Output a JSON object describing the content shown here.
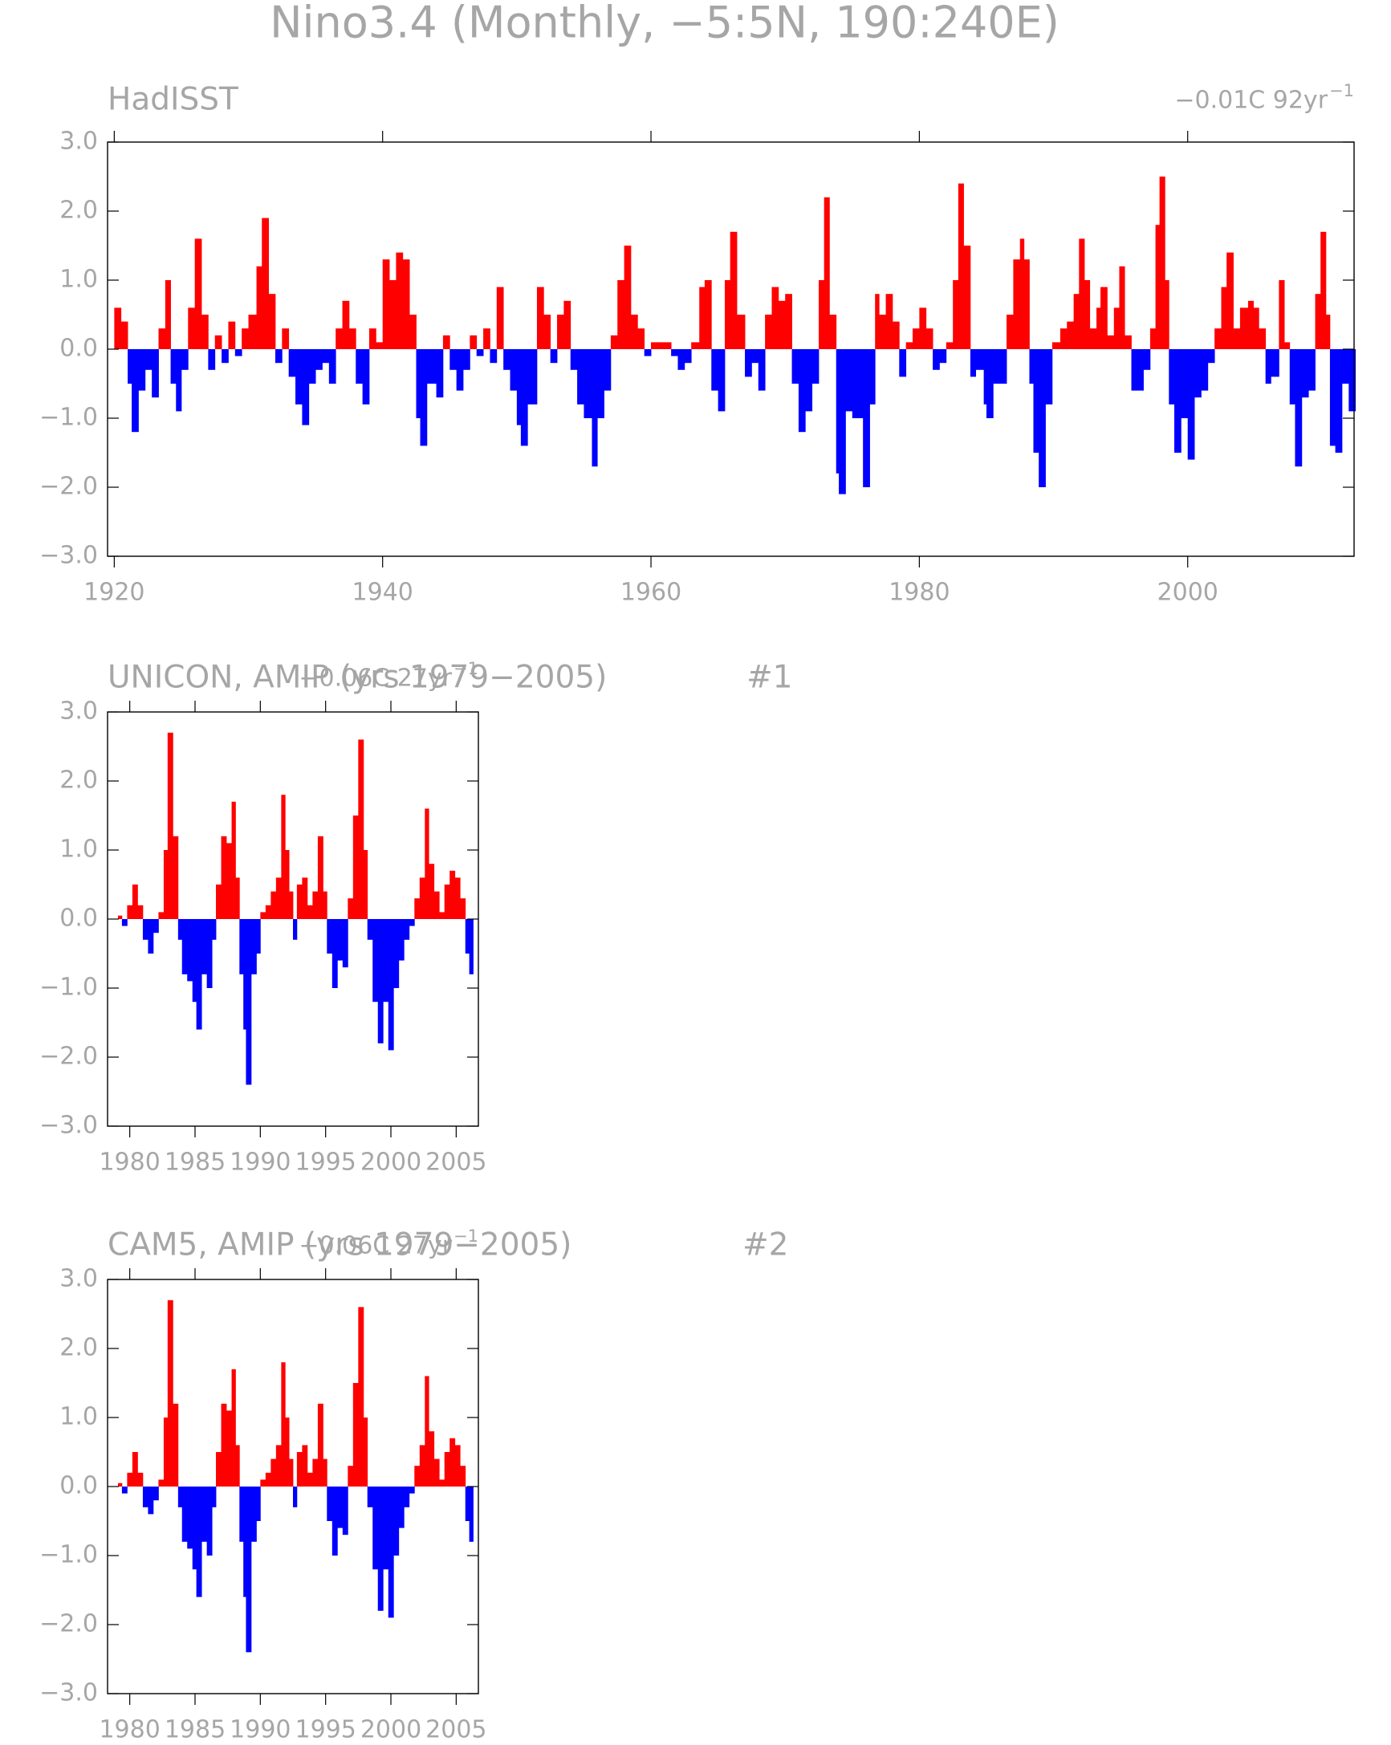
{
  "title": "Nino3.4 (Monthly, −5:5N, 190:240E)",
  "chart_data": [
    {
      "type": "area",
      "title": "HadISST",
      "trend_label": "−0.01C 92yr",
      "trend_exponent": "−1",
      "pos_color": "#ff0000",
      "neg_color": "#0000ff",
      "xlim": [
        1919.5,
        2012.4
      ],
      "ylim": [
        -3,
        3
      ],
      "xticks": [
        1920,
        1940,
        1960,
        1980,
        2000
      ],
      "yticks": [
        {
          "value": 3,
          "label": "3.0"
        },
        {
          "value": 2,
          "label": "2.0"
        },
        {
          "value": 1,
          "label": "1.0"
        },
        {
          "value": 0,
          "label": "0.0"
        },
        {
          "value": -1,
          "label": "−1.0"
        },
        {
          "value": -2,
          "label": "−2.0"
        },
        {
          "value": -3,
          "label": "−3.0"
        }
      ],
      "x": [
        1920.0,
        1920.5,
        1921.0,
        1921.3,
        1921.8,
        1922.3,
        1922.8,
        1923.3,
        1923.8,
        1924.2,
        1924.6,
        1925.0,
        1925.5,
        1926.0,
        1926.5,
        1927.0,
        1927.5,
        1928.0,
        1928.5,
        1929.0,
        1929.5,
        1930.0,
        1930.6,
        1931.0,
        1931.5,
        1932.0,
        1932.5,
        1933.0,
        1933.5,
        1934.0,
        1934.5,
        1935.0,
        1935.5,
        1936.0,
        1936.5,
        1937.0,
        1937.5,
        1938.0,
        1938.5,
        1939.0,
        1939.5,
        1940.0,
        1940.5,
        1941.0,
        1941.5,
        1942.0,
        1942.5,
        1942.8,
        1943.3,
        1944.0,
        1944.5,
        1945.0,
        1945.5,
        1946.0,
        1946.5,
        1947.0,
        1947.5,
        1948.0,
        1948.5,
        1949.0,
        1949.5,
        1950.0,
        1950.3,
        1950.8,
        1951.5,
        1952.0,
        1952.5,
        1953.0,
        1953.5,
        1954.0,
        1954.5,
        1955.0,
        1955.6,
        1956.0,
        1956.5,
        1957.0,
        1957.5,
        1958.0,
        1958.5,
        1959.0,
        1959.5,
        1960.0,
        1960.5,
        1961.0,
        1961.5,
        1962.0,
        1962.5,
        1963.0,
        1963.6,
        1964.0,
        1964.5,
        1965.0,
        1965.5,
        1965.9,
        1966.4,
        1967.0,
        1967.5,
        1968.0,
        1968.5,
        1969.0,
        1969.5,
        1970.0,
        1970.5,
        1971.0,
        1971.5,
        1972.0,
        1972.5,
        1972.9,
        1973.3,
        1973.8,
        1974.0,
        1974.5,
        1975.0,
        1975.8,
        1976.3,
        1976.7,
        1977.0,
        1977.5,
        1978.0,
        1978.5,
        1979.0,
        1979.5,
        1980.0,
        1980.5,
        1981.0,
        1981.5,
        1982.0,
        1982.5,
        1982.9,
        1983.3,
        1983.8,
        1984.2,
        1984.8,
        1985.0,
        1985.5,
        1986.0,
        1986.5,
        1987.0,
        1987.5,
        1987.8,
        1988.2,
        1988.5,
        1988.9,
        1989.4,
        1989.9,
        1990.5,
        1991.0,
        1991.5,
        1991.9,
        1992.3,
        1992.7,
        1993.2,
        1993.5,
        1994.0,
        1994.5,
        1994.9,
        1995.3,
        1995.8,
        1996.2,
        1996.7,
        1997.2,
        1997.6,
        1997.9,
        1998.3,
        1998.6,
        1999.0,
        1999.5,
        2000.0,
        2000.5,
        2001.0,
        2001.5,
        2002.0,
        2002.5,
        2002.9,
        2003.4,
        2003.9,
        2004.5,
        2004.9,
        2005.3,
        2005.8,
        2006.2,
        2006.8,
        2007.2,
        2007.6,
        2008.0,
        2008.5,
        2009.0,
        2009.5,
        2009.9,
        2010.3,
        2010.6,
        2011.0,
        2011.5,
        2012.0
      ],
      "values": [
        0.6,
        0.4,
        -0.5,
        -1.2,
        -0.6,
        -0.3,
        -0.7,
        0.3,
        1.0,
        -0.5,
        -0.9,
        -0.3,
        0.6,
        1.6,
        0.5,
        -0.3,
        0.2,
        -0.2,
        0.4,
        -0.1,
        0.3,
        0.5,
        1.2,
        1.9,
        0.8,
        -0.2,
        0.3,
        -0.4,
        -0.8,
        -1.1,
        -0.5,
        -0.3,
        -0.2,
        -0.5,
        0.3,
        0.7,
        0.3,
        -0.5,
        -0.8,
        0.3,
        0.1,
        1.3,
        1.0,
        1.4,
        1.3,
        0.5,
        -1.0,
        -1.4,
        -0.5,
        -0.7,
        0.2,
        -0.3,
        -0.6,
        -0.3,
        0.2,
        -0.1,
        0.3,
        -0.2,
        0.9,
        -0.3,
        -0.6,
        -1.1,
        -1.4,
        -0.8,
        0.9,
        0.5,
        -0.2,
        0.5,
        0.7,
        -0.3,
        -0.8,
        -1.0,
        -1.7,
        -1.0,
        -0.6,
        0.2,
        1.0,
        1.5,
        0.5,
        0.3,
        -0.1,
        0.1,
        0.1,
        0.1,
        -0.1,
        -0.3,
        -0.2,
        0.1,
        0.9,
        1.0,
        -0.6,
        -0.9,
        1.0,
        1.7,
        0.5,
        -0.4,
        -0.2,
        -0.6,
        0.5,
        0.9,
        0.7,
        0.8,
        -0.5,
        -1.2,
        -0.9,
        -0.5,
        1.0,
        2.2,
        0.5,
        -1.8,
        -2.1,
        -0.9,
        -1.0,
        -2.0,
        -0.8,
        0.8,
        0.5,
        0.8,
        0.4,
        -0.4,
        0.1,
        0.3,
        0.6,
        0.3,
        -0.3,
        -0.2,
        0.1,
        1.0,
        2.4,
        1.5,
        -0.4,
        -0.3,
        -0.8,
        -1.0,
        -0.5,
        -0.5,
        0.5,
        1.3,
        1.6,
        1.3,
        -0.5,
        -1.5,
        -2.0,
        -0.8,
        0.1,
        0.3,
        0.4,
        0.8,
        1.6,
        1.0,
        0.3,
        0.6,
        0.9,
        0.2,
        0.6,
        1.2,
        0.2,
        -0.6,
        -0.6,
        -0.3,
        0.3,
        1.8,
        2.5,
        1.0,
        -0.8,
        -1.5,
        -1.0,
        -1.6,
        -0.7,
        -0.6,
        -0.2,
        0.3,
        0.9,
        1.4,
        0.3,
        0.6,
        0.7,
        0.6,
        0.3,
        -0.5,
        -0.4,
        1.0,
        0.1,
        -0.8,
        -1.7,
        -0.7,
        -0.6,
        0.8,
        1.7,
        0.5,
        -1.4,
        -1.5,
        -0.5,
        -0.9
      ]
    },
    {
      "type": "area",
      "title": "UNICON, AMIP (yrs 1979−2005)",
      "panel_label": "#1",
      "trend_label": "−0.06C 27yr",
      "trend_exponent": "−1",
      "pos_color": "#ff0000",
      "neg_color": "#0000ff",
      "xlim": [
        1978.3,
        2006.7
      ],
      "ylim": [
        -3,
        3
      ],
      "xticks": [
        1980,
        1985,
        1990,
        1995,
        2000,
        2005
      ],
      "yticks": [
        {
          "value": 3,
          "label": "3.0"
        },
        {
          "value": 2,
          "label": "2.0"
        },
        {
          "value": 1,
          "label": "1.0"
        },
        {
          "value": 0,
          "label": "0.0"
        },
        {
          "value": -1,
          "label": "−1.0"
        },
        {
          "value": -2,
          "label": "−2.0"
        },
        {
          "value": -3,
          "label": "−3.0"
        }
      ],
      "x": [
        1979.1,
        1979.4,
        1979.8,
        1980.2,
        1980.6,
        1981.0,
        1981.4,
        1981.8,
        1982.2,
        1982.6,
        1982.9,
        1983.3,
        1983.7,
        1984.0,
        1984.4,
        1984.8,
        1985.1,
        1985.5,
        1985.9,
        1986.3,
        1986.6,
        1987.0,
        1987.4,
        1987.8,
        1988.1,
        1988.4,
        1988.7,
        1988.9,
        1989.3,
        1989.7,
        1990.0,
        1990.4,
        1990.8,
        1991.2,
        1991.6,
        1991.9,
        1992.2,
        1992.5,
        1992.8,
        1993.2,
        1993.6,
        1994.0,
        1994.4,
        1994.8,
        1995.1,
        1995.5,
        1995.9,
        1996.3,
        1996.7,
        1997.1,
        1997.5,
        1997.9,
        1998.2,
        1998.6,
        1999.0,
        1999.4,
        1999.8,
        2000.2,
        2000.6,
        2001.0,
        2001.4,
        2001.8,
        2002.2,
        2002.6,
        2002.9,
        2003.3,
        2003.7,
        2004.1,
        2004.5,
        2004.9,
        2005.3,
        2005.7,
        2006.0
      ],
      "values": [
        0.05,
        -0.1,
        0.2,
        0.5,
        0.2,
        -0.3,
        -0.5,
        -0.2,
        0.1,
        1.0,
        2.7,
        1.2,
        -0.3,
        -0.8,
        -0.9,
        -1.2,
        -1.6,
        -0.8,
        -1.0,
        -0.3,
        0.5,
        1.2,
        1.1,
        1.7,
        0.6,
        -0.8,
        -1.6,
        -2.4,
        -0.8,
        -0.5,
        0.1,
        0.2,
        0.4,
        0.6,
        1.8,
        1.0,
        0.4,
        -0.3,
        0.5,
        0.6,
        0.2,
        0.4,
        1.2,
        0.4,
        -0.5,
        -1.0,
        -0.6,
        -0.7,
        0.3,
        1.5,
        2.6,
        1.0,
        -0.3,
        -1.2,
        -1.8,
        -1.2,
        -1.9,
        -1.0,
        -0.6,
        -0.3,
        -0.1,
        0.3,
        0.6,
        1.6,
        0.8,
        0.4,
        0.1,
        0.5,
        0.7,
        0.6,
        0.3,
        -0.5,
        -0.8
      ]
    },
    {
      "type": "area",
      "title": "CAM5, AMIP (yrs 1979−2005)",
      "panel_label": "#2",
      "trend_label": "−0.06C 27yr",
      "trend_exponent": "−1",
      "pos_color": "#ff0000",
      "neg_color": "#0000ff",
      "xlim": [
        1978.3,
        2006.7
      ],
      "ylim": [
        -3,
        3
      ],
      "xticks": [
        1980,
        1985,
        1990,
        1995,
        2000,
        2005
      ],
      "yticks": [
        {
          "value": 3,
          "label": "3.0"
        },
        {
          "value": 2,
          "label": "2.0"
        },
        {
          "value": 1,
          "label": "1.0"
        },
        {
          "value": 0,
          "label": "0.0"
        },
        {
          "value": -1,
          "label": "−1.0"
        },
        {
          "value": -2,
          "label": "−2.0"
        },
        {
          "value": -3,
          "label": "−3.0"
        }
      ],
      "x": [
        1979.1,
        1979.4,
        1979.8,
        1980.2,
        1980.6,
        1981.0,
        1981.4,
        1981.8,
        1982.2,
        1982.6,
        1982.9,
        1983.3,
        1983.7,
        1984.0,
        1984.4,
        1984.8,
        1985.1,
        1985.5,
        1985.9,
        1986.3,
        1986.6,
        1987.0,
        1987.4,
        1987.8,
        1988.1,
        1988.4,
        1988.7,
        1988.9,
        1989.3,
        1989.7,
        1990.0,
        1990.4,
        1990.8,
        1991.2,
        1991.6,
        1991.9,
        1992.2,
        1992.5,
        1992.8,
        1993.2,
        1993.6,
        1994.0,
        1994.4,
        1994.8,
        1995.1,
        1995.5,
        1995.9,
        1996.3,
        1996.7,
        1997.1,
        1997.5,
        1997.9,
        1998.2,
        1998.6,
        1999.0,
        1999.4,
        1999.8,
        2000.2,
        2000.6,
        2001.0,
        2001.4,
        2001.8,
        2002.2,
        2002.6,
        2002.9,
        2003.3,
        2003.7,
        2004.1,
        2004.5,
        2004.9,
        2005.3,
        2005.7,
        2006.0
      ],
      "values": [
        0.05,
        -0.1,
        0.2,
        0.5,
        0.2,
        -0.3,
        -0.4,
        -0.2,
        0.1,
        1.0,
        2.7,
        1.2,
        -0.3,
        -0.8,
        -0.9,
        -1.2,
        -1.6,
        -0.8,
        -1.0,
        -0.3,
        0.5,
        1.2,
        1.1,
        1.7,
        0.6,
        -0.8,
        -1.6,
        -2.4,
        -0.8,
        -0.5,
        0.1,
        0.2,
        0.4,
        0.6,
        1.8,
        1.0,
        0.4,
        -0.3,
        0.5,
        0.6,
        0.2,
        0.4,
        1.2,
        0.4,
        -0.5,
        -1.0,
        -0.6,
        -0.7,
        0.3,
        1.5,
        2.6,
        1.0,
        -0.3,
        -1.2,
        -1.8,
        -1.2,
        -1.9,
        -1.0,
        -0.6,
        -0.3,
        -0.1,
        0.3,
        0.6,
        1.6,
        0.8,
        0.4,
        0.1,
        0.5,
        0.7,
        0.6,
        0.3,
        -0.5,
        -0.8
      ]
    }
  ]
}
